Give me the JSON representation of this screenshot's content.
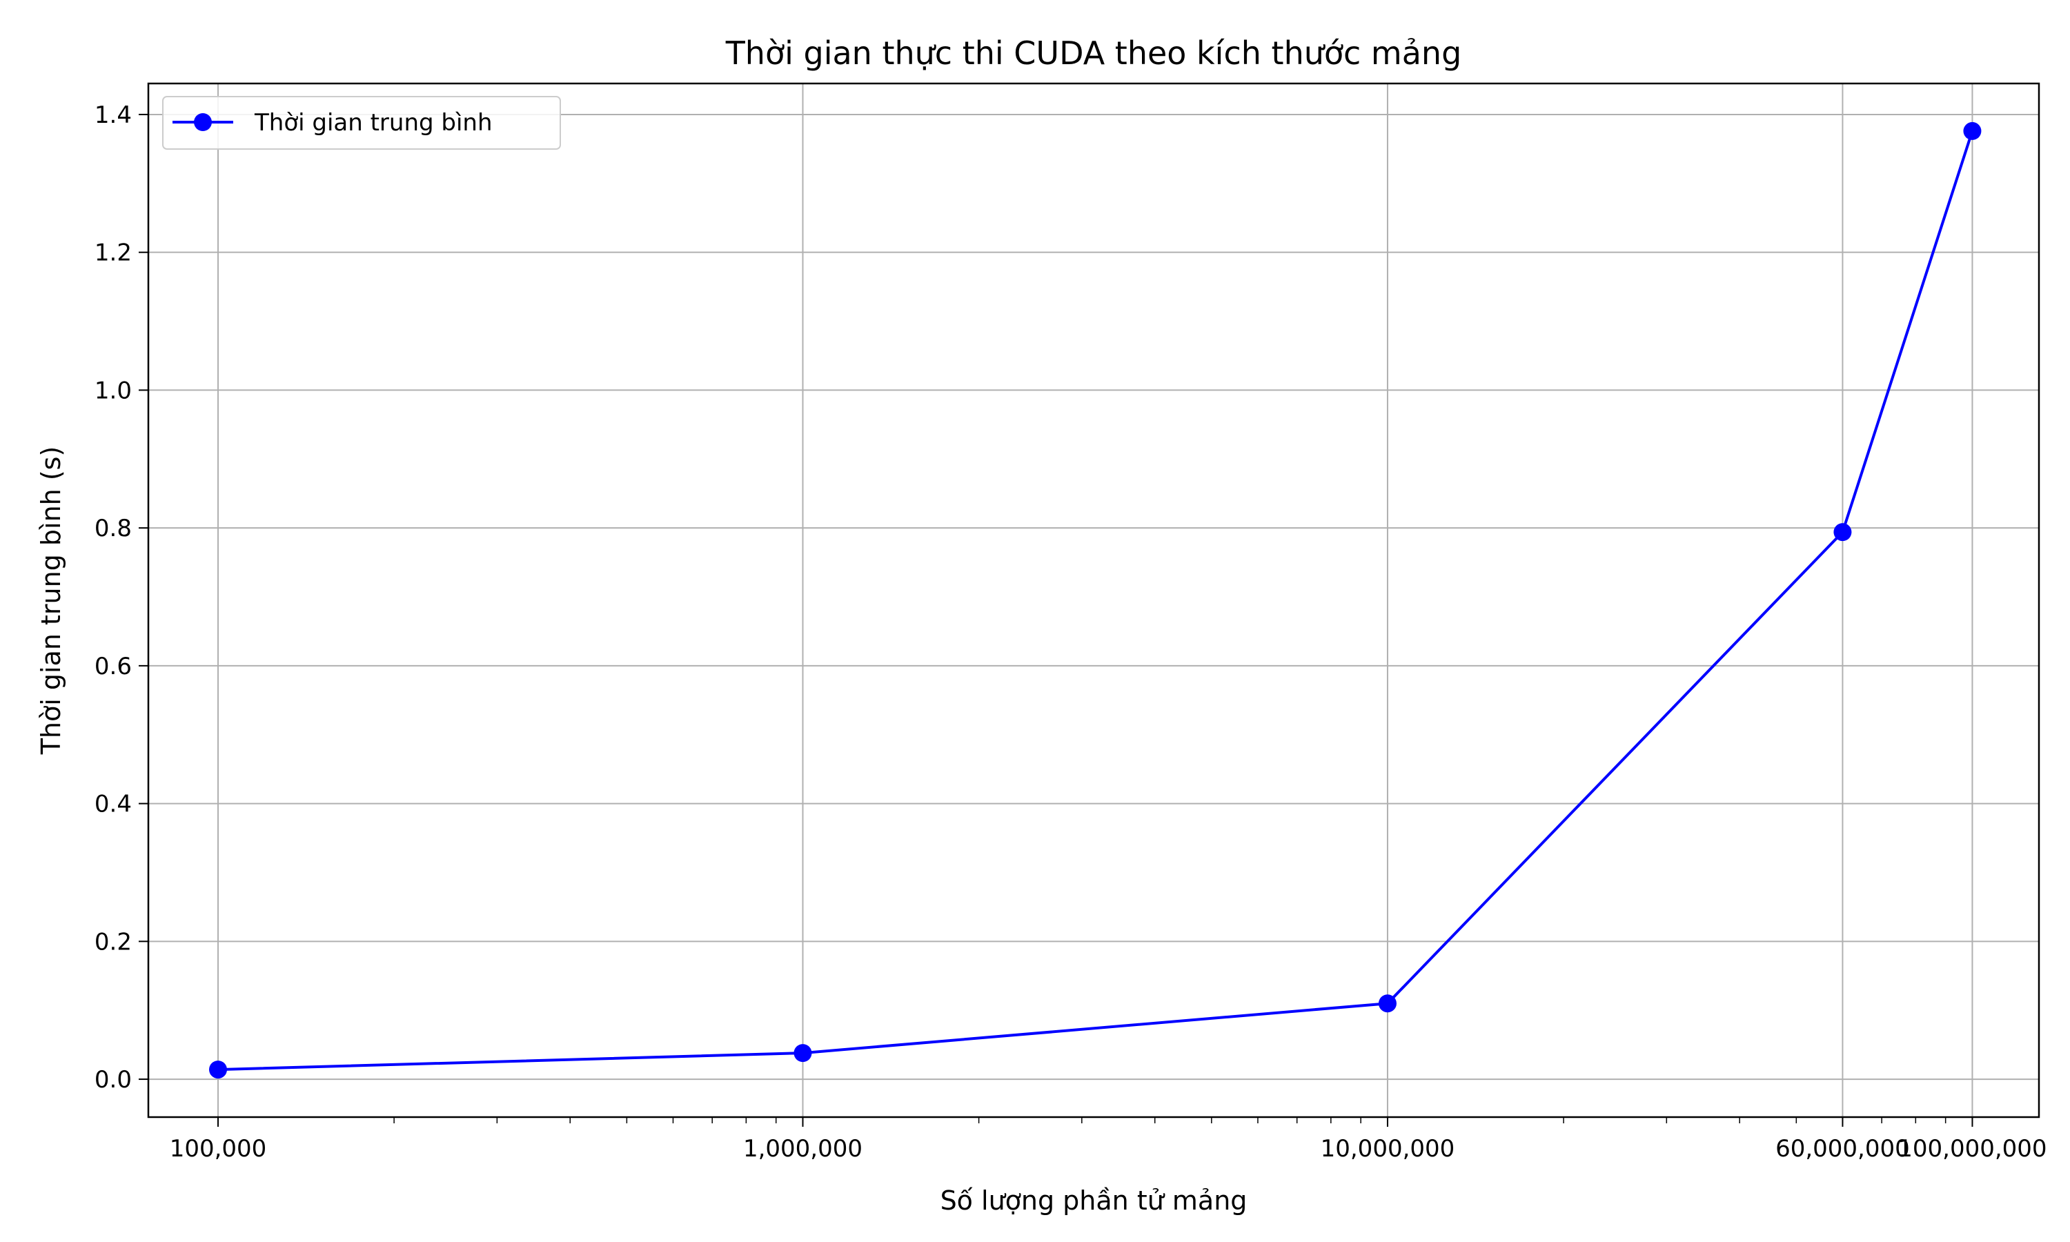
{
  "chart_data": {
    "type": "line",
    "title": "Thời gian thực thi CUDA theo kích thước mảng",
    "xlabel": "Số lượng phần tử mảng",
    "ylabel": "Thời gian trung bình (s)",
    "x_scale": "log",
    "xlim": [
      76000,
      130000000
    ],
    "ylim": [
      -0.055,
      1.445
    ],
    "grid": true,
    "legend_position": "top-left",
    "x_ticks": [
      {
        "value": 100000,
        "label": "100,000"
      },
      {
        "value": 1000000,
        "label": "1,000,000"
      },
      {
        "value": 10000000,
        "label": "10,000,000"
      },
      {
        "value": 60000000,
        "label": "60,000,000"
      },
      {
        "value": 100000000,
        "label": "100,000,000"
      }
    ],
    "y_ticks": [
      {
        "value": 0.0,
        "label": "0.0"
      },
      {
        "value": 0.2,
        "label": "0.2"
      },
      {
        "value": 0.4,
        "label": "0.4"
      },
      {
        "value": 0.6,
        "label": "0.6"
      },
      {
        "value": 0.8,
        "label": "0.8"
      },
      {
        "value": 1.0,
        "label": "1.0"
      },
      {
        "value": 1.2,
        "label": "1.2"
      },
      {
        "value": 1.4,
        "label": "1.4"
      }
    ],
    "series": [
      {
        "name": "Thời gian trung bình",
        "color": "#0000ff",
        "marker": "circle",
        "x": [
          100000,
          1000000,
          10000000,
          60000000,
          100000000
        ],
        "y": [
          0.014,
          0.038,
          0.11,
          0.794,
          1.376
        ]
      }
    ]
  }
}
